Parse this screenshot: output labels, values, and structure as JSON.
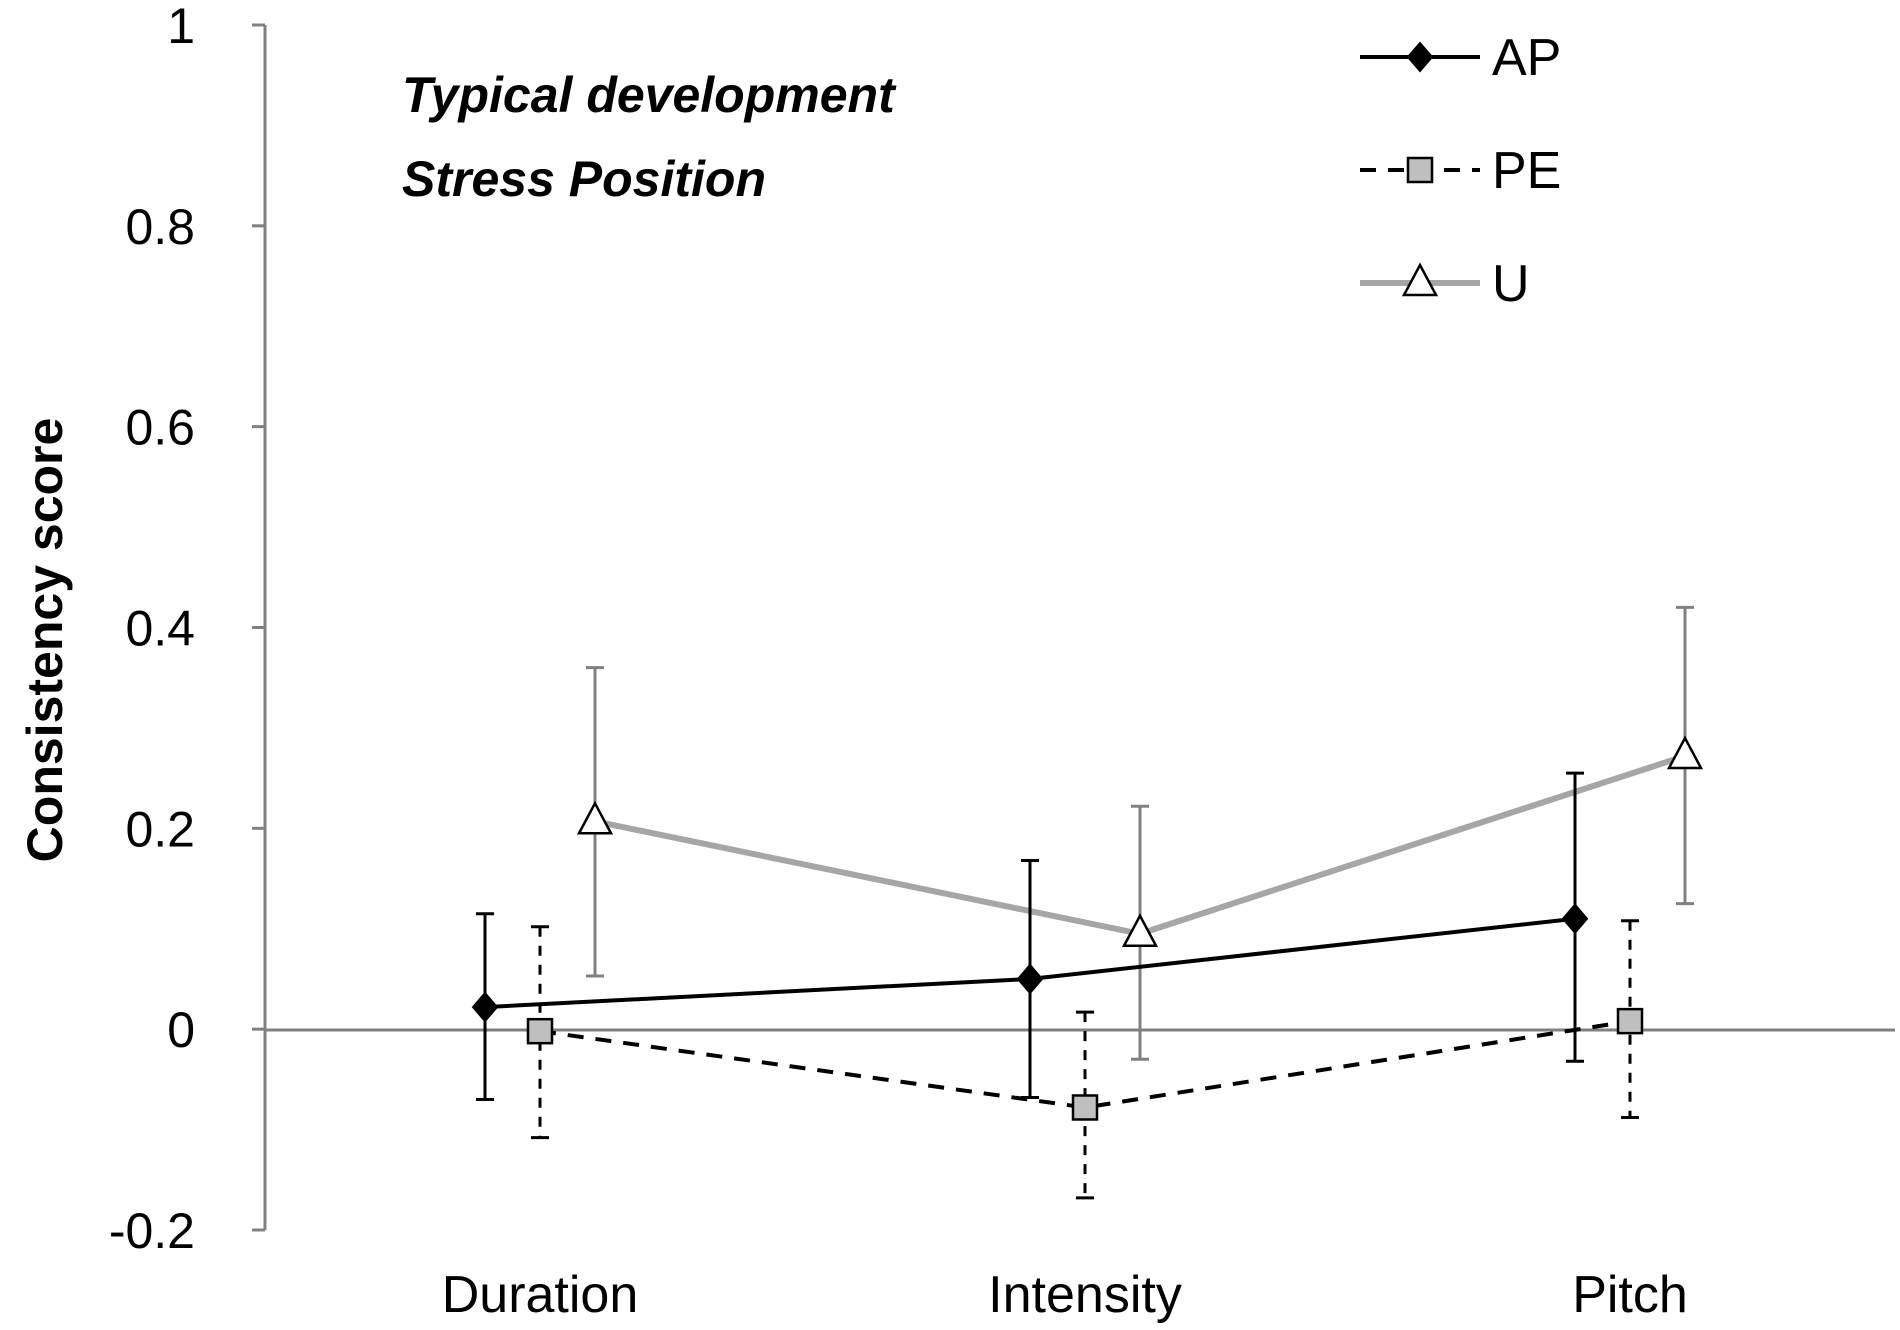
{
  "chart_data": {
    "type": "line",
    "title": "",
    "annotations": [
      "Typical development",
      "Stress Position"
    ],
    "xlabel": "",
    "ylabel": "Consistency score",
    "ylim": [
      -0.2,
      1
    ],
    "yticks": [
      "-0.2",
      "0",
      "0.2",
      "0.4",
      "0.6",
      "0.8",
      "1"
    ],
    "categories": [
      "Duration",
      "Intensity",
      "Pitch"
    ],
    "legend_position": "top-right",
    "series": [
      {
        "name": "AP",
        "values": [
          0.022,
          0.05,
          0.11
        ],
        "err_low": [
          -0.07,
          -0.068,
          -0.032
        ],
        "err_high": [
          0.115,
          0.168,
          0.255
        ],
        "line_color": "#000000",
        "line_style": "solid",
        "marker": "diamond",
        "marker_fill": "#000000",
        "marker_stroke": "#000000",
        "error_color": "#000000",
        "error_style": "solid"
      },
      {
        "name": "PE",
        "values": [
          -0.002,
          -0.078,
          0.008
        ],
        "err_low": [
          -0.108,
          -0.168,
          -0.088
        ],
        "err_high": [
          0.102,
          0.017,
          0.108
        ],
        "line_color": "#000000",
        "line_style": "dashed",
        "marker": "square",
        "marker_fill": "#bfbfbf",
        "marker_stroke": "#000000",
        "error_color": "#000000",
        "error_style": "dashed"
      },
      {
        "name": "U",
        "values": [
          0.207,
          0.095,
          0.272
        ],
        "err_low": [
          0.053,
          -0.03,
          0.125
        ],
        "err_high": [
          0.36,
          0.222,
          0.42
        ],
        "line_color": "#a6a6a6",
        "line_style": "solid",
        "marker": "triangle",
        "marker_fill": "#ffffff",
        "marker_stroke": "#000000",
        "error_color": "#808080",
        "error_style": "solid"
      }
    ]
  }
}
